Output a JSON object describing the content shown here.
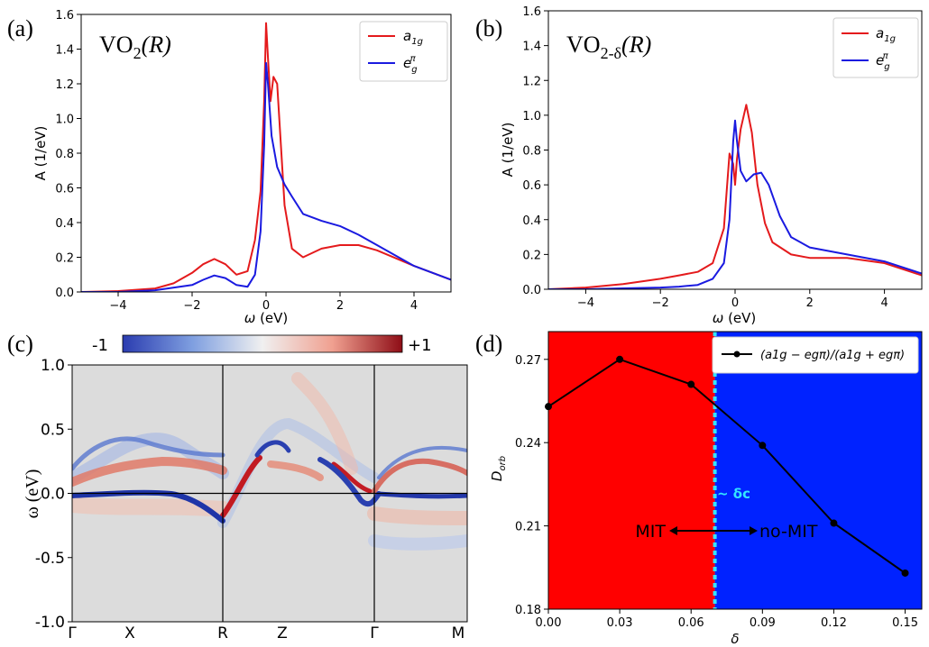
{
  "panels": {
    "a": {
      "label": "(a)",
      "title_base": "VO",
      "title_sub": "2",
      "title_tail": "(R)",
      "chart_data": {
        "type": "line",
        "xlabel": "ω (eV)",
        "ylabel": "A (1/eV)",
        "xlim": [
          -5,
          5
        ],
        "ylim": [
          0,
          1.6
        ],
        "xticks": [
          -4,
          -2,
          0,
          2,
          4
        ],
        "yticks": [
          0.0,
          0.2,
          0.4,
          0.6,
          0.8,
          1.0,
          1.2,
          1.4,
          1.6
        ],
        "legend": "top-right",
        "series": [
          {
            "name": "a1g",
            "legend_main": "a",
            "legend_sub": "1g",
            "color": "#e41a1c",
            "x": [
              -5,
              -4,
              -3,
              -2.5,
              -2,
              -1.7,
              -1.4,
              -1.1,
              -0.8,
              -0.5,
              -0.3,
              -0.15,
              -0.05,
              0.0,
              0.05,
              0.12,
              0.2,
              0.3,
              0.4,
              0.5,
              0.7,
              1.0,
              1.5,
              2.0,
              2.5,
              3.0,
              4.0,
              5.0
            ],
            "y": [
              0.0,
              0.005,
              0.02,
              0.05,
              0.11,
              0.16,
              0.19,
              0.16,
              0.1,
              0.12,
              0.3,
              0.58,
              1.1,
              1.55,
              1.35,
              1.1,
              1.24,
              1.2,
              0.85,
              0.5,
              0.25,
              0.2,
              0.25,
              0.27,
              0.27,
              0.24,
              0.15,
              0.07
            ]
          },
          {
            "name": "egπ",
            "legend_main": "e",
            "legend_sub": "g",
            "legend_sup": "π",
            "color": "#1a1ae0",
            "x": [
              -5,
              -4,
              -3,
              -2,
              -1.7,
              -1.4,
              -1.1,
              -0.8,
              -0.5,
              -0.3,
              -0.15,
              -0.05,
              0.0,
              0.05,
              0.15,
              0.3,
              0.5,
              0.7,
              1.0,
              1.5,
              2.0,
              2.5,
              3.0,
              4.0,
              5.0
            ],
            "y": [
              0.0,
              0.0,
              0.01,
              0.04,
              0.07,
              0.095,
              0.08,
              0.04,
              0.03,
              0.1,
              0.35,
              0.85,
              1.32,
              1.2,
              0.9,
              0.72,
              0.62,
              0.55,
              0.45,
              0.41,
              0.38,
              0.33,
              0.27,
              0.15,
              0.07
            ]
          }
        ]
      }
    },
    "b": {
      "label": "(b)",
      "title_base": "VO",
      "title_sub": "2-δ",
      "title_tail": "(R)",
      "chart_data": {
        "type": "line",
        "xlabel": "ω (eV)",
        "ylabel": "A (1/eV)",
        "xlim": [
          -5,
          5
        ],
        "ylim": [
          0,
          1.6
        ],
        "xticks": [
          -4,
          -2,
          0,
          2,
          4
        ],
        "yticks": [
          0.0,
          0.2,
          0.4,
          0.6,
          0.8,
          1.0,
          1.2,
          1.4,
          1.6
        ],
        "legend": "top-right",
        "series": [
          {
            "name": "a1g",
            "legend_main": "a",
            "legend_sub": "1g",
            "color": "#e41a1c",
            "x": [
              -5,
              -4,
              -3,
              -2,
              -1.5,
              -1.0,
              -0.6,
              -0.3,
              -0.15,
              -0.05,
              0.0,
              0.05,
              0.15,
              0.3,
              0.45,
              0.6,
              0.8,
              1.0,
              1.5,
              2.0,
              3.0,
              4.0,
              5.0
            ],
            "y": [
              0.0,
              0.01,
              0.03,
              0.06,
              0.08,
              0.1,
              0.15,
              0.35,
              0.78,
              0.72,
              0.6,
              0.75,
              0.92,
              1.06,
              0.9,
              0.6,
              0.38,
              0.27,
              0.2,
              0.18,
              0.18,
              0.15,
              0.08
            ]
          },
          {
            "name": "egπ",
            "legend_main": "e",
            "legend_sub": "g",
            "legend_sup": "π",
            "color": "#1a1ae0",
            "x": [
              -5,
              -4,
              -3,
              -2,
              -1.5,
              -1.0,
              -0.6,
              -0.3,
              -0.15,
              -0.05,
              0.0,
              0.05,
              0.15,
              0.3,
              0.5,
              0.7,
              0.9,
              1.2,
              1.5,
              2.0,
              3.0,
              4.0,
              5.0
            ],
            "y": [
              0.0,
              0.0,
              0.005,
              0.01,
              0.015,
              0.025,
              0.06,
              0.15,
              0.4,
              0.85,
              0.97,
              0.85,
              0.68,
              0.62,
              0.66,
              0.67,
              0.6,
              0.42,
              0.3,
              0.24,
              0.2,
              0.16,
              0.09
            ]
          }
        ]
      }
    },
    "c": {
      "label": "(c)",
      "colorbar_min": "-1",
      "colorbar_max": "+1",
      "ylabel": "ω (eV)",
      "yticks": [
        "1.0",
        "0.5",
        "0.0",
        "-0.5",
        "-1.0"
      ],
      "ylim": [
        -1.0,
        1.0
      ],
      "kpoints": [
        "Γ",
        "X",
        "R",
        "Z",
        "Γ",
        "M"
      ],
      "colors": {
        "negative": "#2b3cb0",
        "positive": "#b0161e",
        "neutral": "#dcdcdc"
      }
    },
    "d": {
      "label": "(d)",
      "chart_data": {
        "type": "line",
        "xlabel": "δ",
        "ylabel": "D_orb",
        "ylabel_main": "D",
        "ylabel_sub": "orb",
        "x": [
          0.0,
          0.03,
          0.06,
          0.09,
          0.12,
          0.15
        ],
        "values": [
          0.253,
          0.27,
          0.261,
          0.239,
          0.211,
          0.193
        ],
        "xlim": [
          0.0,
          0.157
        ],
        "ylim": [
          0.18,
          0.28
        ],
        "xticks": [
          "0.00",
          "0.03",
          "0.06",
          "0.09",
          "0.12",
          "0.15"
        ],
        "yticks": [
          "0.18",
          "0.21",
          "0.24",
          "0.27"
        ],
        "legend": "top-right",
        "legend_text": "(a1g − egπ)/(a1g + egπ)",
        "boundary_x": 0.07,
        "boundary_label": "~ δc",
        "region_left_label": "MIT",
        "region_right_label": "no-MIT",
        "colors": {
          "left": "#ff0000",
          "right": "#0022ff",
          "boundary": "#33e6ff",
          "line": "#000000"
        }
      }
    }
  }
}
